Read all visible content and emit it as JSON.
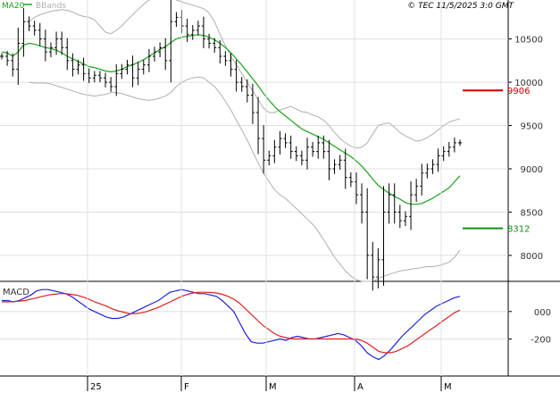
{
  "header": {
    "credit": "© TEC 11/5/2025 3:0 GMT",
    "legend_ma": "MA20",
    "legend_bb": "BBands"
  },
  "colors": {
    "price": "#000000",
    "ma": "#1aa31a",
    "bbands": "#b0b0b0",
    "resistance": "#cc0000",
    "support": "#129112",
    "macd": "#2222dd",
    "signal": "#dd2222",
    "grid": "#e0e0e0",
    "frame": "#000000"
  },
  "chart_data": [
    {
      "type": "ohlc",
      "x_axis": {
        "labels": [
          "25",
          "F",
          "M",
          "A",
          "M"
        ]
      },
      "y_axis": {
        "ticks": [
          8000,
          8500,
          9000,
          9500,
          10000,
          10500
        ],
        "tick_labels": [
          "8000",
          "8500",
          "9000",
          "9500",
          "10000",
          "10500"
        ],
        "ylim": [
          7700,
          10950
        ]
      },
      "grid": true,
      "legend": "top-left",
      "levels": [
        {
          "label": "9906",
          "value": 9906,
          "color": "#cc0000"
        },
        {
          "label": "8312",
          "value": 8312,
          "color": "#129112"
        }
      ],
      "bars_close": [
        10300,
        10250,
        10150,
        10450,
        10700,
        10650,
        10600,
        10500,
        10350,
        10400,
        10500,
        10400,
        10250,
        10150,
        10200,
        10100,
        10050,
        10080,
        10050,
        10000,
        9950,
        10100,
        10150,
        10200,
        10050,
        10150,
        10200,
        10300,
        10350,
        10400,
        10250,
        10700,
        10750,
        10650,
        10550,
        10600,
        10650,
        10500,
        10450,
        10400,
        10300,
        10250,
        10150,
        10000,
        9950,
        9850,
        9650,
        9350,
        9100,
        9150,
        9250,
        9350,
        9300,
        9200,
        9150,
        9100,
        9250,
        9200,
        9300,
        9200,
        9000,
        9050,
        9100,
        8900,
        8850,
        8700,
        8500,
        8000,
        7750,
        7950,
        8500,
        8700,
        8500,
        8400,
        8450,
        8700,
        8800,
        8950,
        9000,
        9050,
        9150,
        9200,
        9250,
        9300,
        9300
      ],
      "ma20": [
        10350,
        10340,
        10300,
        10350,
        10430,
        10450,
        10440,
        10420,
        10400,
        10390,
        10370,
        10340,
        10300,
        10270,
        10240,
        10210,
        10180,
        10170,
        10150,
        10130,
        10120,
        10130,
        10150,
        10180,
        10200,
        10230,
        10260,
        10300,
        10340,
        10380,
        10410,
        10460,
        10500,
        10520,
        10530,
        10540,
        10550,
        10540,
        10520,
        10490,
        10450,
        10400,
        10340,
        10270,
        10200,
        10120,
        10040,
        9960,
        9870,
        9790,
        9720,
        9660,
        9610,
        9560,
        9510,
        9460,
        9430,
        9400,
        9370,
        9340,
        9300,
        9260,
        9220,
        9180,
        9140,
        9090,
        9030,
        8960,
        8880,
        8810,
        8760,
        8720,
        8680,
        8650,
        8610,
        8590,
        8590,
        8600,
        8630,
        8660,
        8700,
        8740,
        8780,
        8850,
        8920
      ],
      "bb_upper": [
        null,
        null,
        null,
        null,
        null,
        10700,
        10750,
        10780,
        10800,
        10820,
        10830,
        10840,
        10830,
        10810,
        10780,
        10760,
        10750,
        10720,
        10650,
        10580,
        10560,
        10600,
        10650,
        10720,
        10780,
        10840,
        10900,
        10950,
        10990,
        11020,
        11000,
        10980,
        10950,
        10930,
        10910,
        10890,
        10870,
        10850,
        10800,
        10700,
        10550,
        10420,
        10300,
        10200,
        10100,
        10000,
        9900,
        9800,
        9700,
        9650,
        9650,
        9680,
        9700,
        9720,
        9690,
        9660,
        9650,
        9620,
        9600,
        9560,
        9500,
        9420,
        9350,
        9300,
        9260,
        9240,
        9250,
        9300,
        9400,
        9500,
        9520,
        9530,
        9480,
        9420,
        9380,
        9350,
        9320,
        9330,
        9360,
        9400,
        9450,
        9500,
        9540,
        9560,
        9580
      ],
      "bb_lower": [
        null,
        null,
        null,
        null,
        null,
        10000,
        9990,
        9990,
        9990,
        9980,
        9960,
        9940,
        9920,
        9900,
        9880,
        9860,
        9850,
        9840,
        9850,
        9860,
        9880,
        9880,
        9870,
        9850,
        9830,
        9810,
        9800,
        9790,
        9800,
        9820,
        9840,
        9880,
        9950,
        10000,
        10030,
        10050,
        10060,
        10050,
        10000,
        9950,
        9870,
        9780,
        9680,
        9560,
        9450,
        9330,
        9200,
        9070,
        8950,
        8850,
        8760,
        8700,
        8660,
        8600,
        8540,
        8480,
        8420,
        8360,
        8280,
        8180,
        8080,
        7980,
        7900,
        7820,
        7760,
        7720,
        7700,
        7700,
        7700,
        7730,
        7760,
        7780,
        7800,
        7820,
        7830,
        7840,
        7850,
        7860,
        7870,
        7870,
        7880,
        7900,
        7920,
        7980,
        8060
      ]
    },
    {
      "type": "line",
      "title": "MACD",
      "y_axis": {
        "ticks": [
          0,
          -200
        ],
        "tick_labels": [
          "000",
          "-200"
        ],
        "ylim": [
          -450,
          200
        ]
      },
      "series": [
        {
          "values": [
            80,
            80,
            70,
            80,
            100,
            120,
            150,
            160,
            160,
            150,
            140,
            130,
            110,
            80,
            50,
            20,
            0,
            -20,
            -40,
            -50,
            -50,
            -40,
            -20,
            0,
            20,
            40,
            60,
            80,
            110,
            140,
            150,
            160,
            150,
            140,
            130,
            130,
            120,
            110,
            80,
            40,
            0,
            -80,
            -160,
            -220,
            -230,
            -230,
            -220,
            -210,
            -200,
            -210,
            -190,
            -180,
            -190,
            -200,
            -200,
            -190,
            -180,
            -170,
            -160,
            -170,
            -190,
            -210,
            -250,
            -300,
            -330,
            -350,
            -320,
            -280,
            -230,
            -180,
            -140,
            -100,
            -60,
            -20,
            10,
            40,
            60,
            80,
            100,
            110
          ]
        },
        {
          "values": [
            70,
            70,
            72,
            75,
            80,
            90,
            100,
            110,
            120,
            125,
            130,
            130,
            125,
            118,
            105,
            90,
            70,
            55,
            40,
            20,
            5,
            -5,
            -15,
            -15,
            -10,
            0,
            15,
            30,
            50,
            70,
            90,
            110,
            125,
            135,
            140,
            140,
            138,
            135,
            125,
            110,
            90,
            60,
            20,
            -20,
            -60,
            -100,
            -130,
            -160,
            -180,
            -190,
            -200,
            -200,
            -200,
            -200,
            -200,
            -200,
            -200,
            -200,
            -200,
            -200,
            -200,
            -200,
            -210,
            -230,
            -260,
            -290,
            -300,
            -300,
            -290,
            -270,
            -250,
            -220,
            -190,
            -160,
            -130,
            -100,
            -70,
            -40,
            -10,
            10
          ]
        }
      ]
    }
  ]
}
